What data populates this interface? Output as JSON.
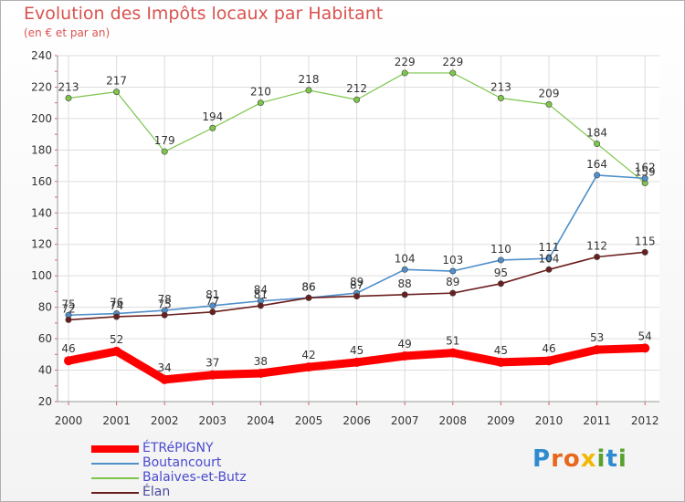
{
  "title": "Evolution des Impôts locaux par Habitant",
  "subtitle": "(en € et par an)",
  "brand": {
    "letters": [
      "P",
      "r",
      "o",
      "x",
      "i",
      "t",
      "i"
    ],
    "colors": [
      "#2e8bcf",
      "#e8671c",
      "#e8671c",
      "#f2b705",
      "#5aa02c",
      "#2e8bcf",
      "#5aa02c"
    ]
  },
  "chart_data": {
    "type": "line",
    "x": [
      "2000",
      "2001",
      "2002",
      "2003",
      "2004",
      "2005",
      "2006",
      "2007",
      "2008",
      "2009",
      "2010",
      "2011",
      "2012"
    ],
    "yticks": [
      "20",
      "40",
      "60",
      "80",
      "100",
      "120",
      "140",
      "160",
      "180",
      "200",
      "220",
      "240"
    ],
    "ylim": [
      20,
      240
    ],
    "grid": true,
    "legend_position": "bottom-left",
    "series": [
      {
        "name": "ÉTRéPIGNY",
        "color": "#ff0000",
        "values": [
          46,
          52,
          34,
          37,
          38,
          42,
          45,
          49,
          51,
          45,
          46,
          53,
          54
        ],
        "labels": [
          "46",
          "52",
          "34",
          "37",
          "38",
          "42",
          "45",
          "49",
          "51",
          "45",
          "46",
          "53",
          "54"
        ]
      },
      {
        "name": "Boutancourt",
        "color": "#4f8fca",
        "values": [
          75,
          76,
          78,
          81,
          84,
          86,
          89,
          104,
          103,
          110,
          111,
          164,
          162
        ],
        "labels": [
          "75",
          "76",
          "78",
          "81",
          "84",
          "86",
          "89",
          "104",
          "103",
          "110",
          "111",
          "164",
          "162"
        ]
      },
      {
        "name": "Balaives-et-Butz",
        "color": "#7dc54b",
        "values": [
          213,
          217,
          179,
          194,
          210,
          218,
          212,
          229,
          229,
          213,
          209,
          184,
          159
        ],
        "labels": [
          "213",
          "217",
          "179",
          "194",
          "210",
          "218",
          "212",
          "229",
          "229",
          "213",
          "209",
          "184",
          "159"
        ]
      },
      {
        "name": "Élan",
        "color": "#6b1e1e",
        "values": [
          72,
          74,
          75,
          77,
          81,
          86,
          87,
          88,
          89,
          95,
          104,
          112,
          115
        ],
        "labels": [
          "72",
          "74",
          "75",
          "77",
          "81",
          "86",
          "87",
          "88",
          "89",
          "95",
          "104",
          "112",
          "115"
        ]
      }
    ]
  }
}
